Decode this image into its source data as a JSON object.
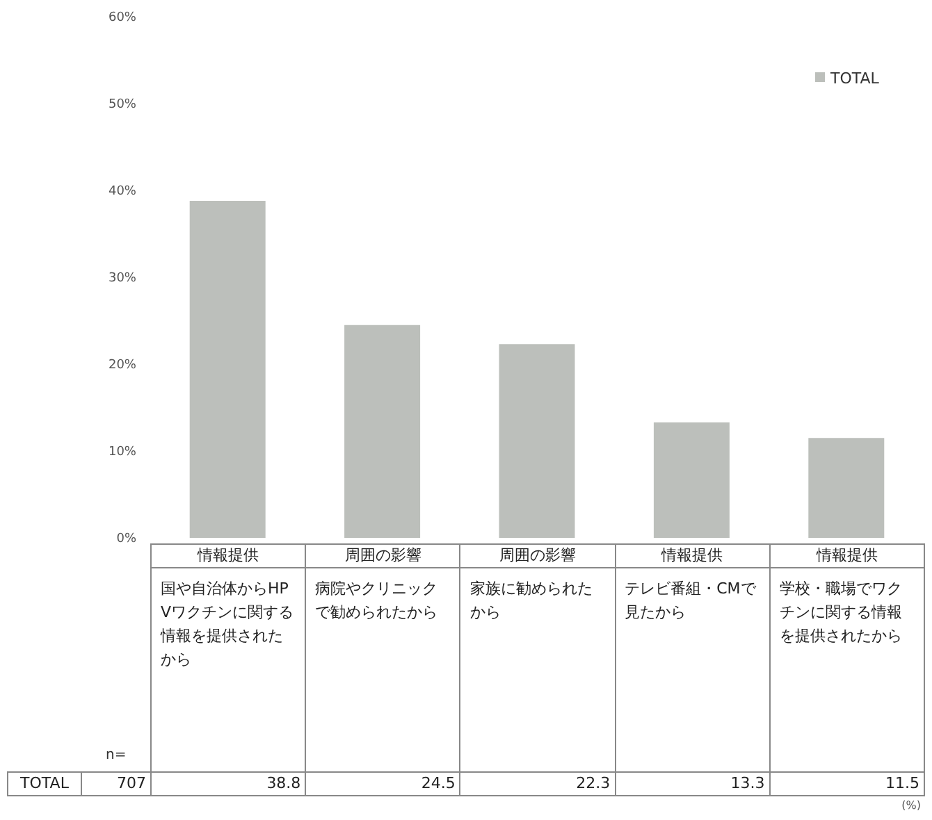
{
  "chart_data": {
    "type": "bar",
    "categories": [
      "国や自治体からHPVワクチンに関する情報を提供されたから",
      "病院やクリニックで勧められたから",
      "家族に勧められたから",
      "テレビ番組・CMで見たから",
      "学校・職場でワクチンに関する情報を提供されたから"
    ],
    "series": [
      {
        "name": "TOTAL",
        "color": "#bcbfbb",
        "values": [
          38.8,
          24.5,
          22.3,
          13.3,
          11.5
        ]
      }
    ],
    "ylim": [
      0,
      60
    ],
    "yticks": [
      {
        "value": 0,
        "label": "0%"
      },
      {
        "value": 10,
        "label": "10%"
      },
      {
        "value": 20,
        "label": "20%"
      },
      {
        "value": 30,
        "label": "30%"
      },
      {
        "value": 40,
        "label": "40%"
      },
      {
        "value": 50,
        "label": "50%"
      },
      {
        "value": 60,
        "label": "60%"
      }
    ],
    "data_labels": true,
    "legend": "top right",
    "grid": false,
    "annotations": [
      "情報提供",
      "周囲の影響",
      "周囲の影響",
      "情報提供",
      "情報提供",
      "n=",
      "707",
      "(%)"
    ]
  }
}
